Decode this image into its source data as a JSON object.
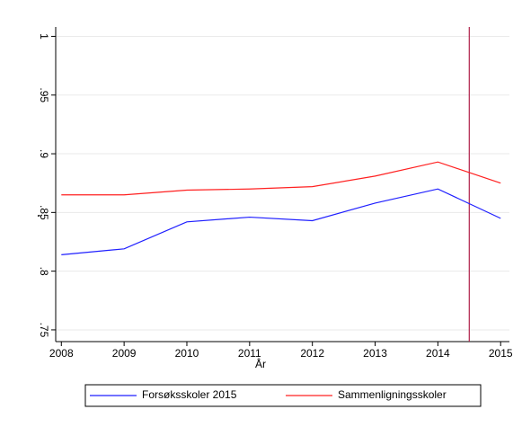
{
  "chart_data": {
    "type": "line",
    "x_label": "År",
    "y_label": "‘",
    "x": [
      2008,
      2009,
      2010,
      2011,
      2012,
      2013,
      2014,
      2015
    ],
    "series": [
      {
        "name": "Forsøksskoler 2015",
        "color": "#1f1fff",
        "values": [
          0.814,
          0.819,
          0.842,
          0.846,
          0.843,
          0.858,
          0.87,
          0.845
        ]
      },
      {
        "name": "Sammenligningsskoler",
        "color": "#ff2020",
        "values": [
          0.865,
          0.865,
          0.869,
          0.87,
          0.872,
          0.881,
          0.893,
          0.875
        ]
      }
    ],
    "xlim": [
      2007.91,
      2015.14
    ],
    "xticks": [
      2008,
      2009,
      2010,
      2011,
      2012,
      2013,
      2014,
      2015
    ],
    "ylim": [
      0.74,
      1.008
    ],
    "yticks": [
      {
        "value": 0.75,
        "label": ".75"
      },
      {
        "value": 0.8,
        "label": ".8"
      },
      {
        "value": 0.85,
        "label": ".85"
      },
      {
        "value": 0.9,
        "label": ".9"
      },
      {
        "value": 0.95,
        "label": ".95"
      },
      1
    ],
    "vline": 2014.5,
    "vline_color": "#b0204a",
    "grid": true,
    "legend": "bottom"
  }
}
